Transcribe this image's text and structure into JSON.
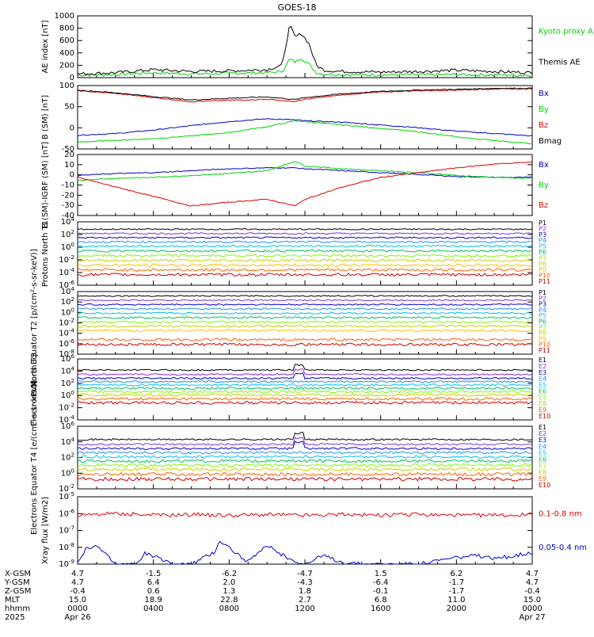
{
  "title": "GOES-18",
  "colors": {
    "black": "#000000",
    "green": "#00d000",
    "bright_green": "#00ff00",
    "red": "#e00000",
    "blue": "#0000cc"
  },
  "xticks": [
    "0000",
    "0400",
    "0800",
    "1200",
    "1600",
    "2000",
    "0000"
  ],
  "ephemeris": {
    "labels": [
      "X-GSM",
      "Y-GSM",
      "Z-GSM",
      "MLT",
      "hhmm",
      "2025"
    ],
    "rows": [
      [
        "4.7",
        "-1.5",
        "-6.2",
        "-4.7",
        "1.5",
        "6.2",
        "4.7"
      ],
      [
        "4.7",
        "6.4",
        "2.0",
        "-4.3",
        "-6.4",
        "-1.7",
        "4.7"
      ],
      [
        "-0.4",
        "0.6",
        "1.3",
        "1.8",
        "-0.1",
        "-1.7",
        "-0.4"
      ],
      [
        "15.0",
        "18.9",
        "22.8",
        "2.7",
        "6.8",
        "11.0",
        "15.0"
      ],
      [
        "0000",
        "0400",
        "0800",
        "1200",
        "1600",
        "2000",
        "0000"
      ]
    ],
    "date_left": "Apr 26",
    "date_right": "Apr 27"
  },
  "chart_data": [
    {
      "type": "line",
      "ylabel": "AE index [nT]",
      "yticks": [
        "1000",
        "800",
        "600",
        "400",
        "200",
        "0"
      ],
      "ylim": [
        0,
        1000
      ],
      "series": [
        {
          "name": "Kyoto proxy AE",
          "color": "#00d000",
          "key_x": 1.25,
          "x": [
            0,
            2,
            4,
            6,
            8,
            10,
            10.8,
            11.2,
            11.5,
            11.8,
            12.2,
            12.6,
            13,
            14,
            16,
            18,
            20,
            22,
            24
          ],
          "y": [
            40,
            50,
            80,
            60,
            70,
            80,
            100,
            300,
            250,
            320,
            220,
            80,
            60,
            50,
            45,
            45,
            50,
            45,
            40
          ]
        },
        {
          "name": "Themis AE",
          "color": "#000000",
          "x": [
            0,
            2,
            4,
            6,
            8,
            10,
            10.8,
            11.2,
            11.5,
            11.8,
            12.2,
            12.6,
            13,
            14,
            16,
            18,
            20,
            22,
            24
          ],
          "y": [
            60,
            80,
            130,
            100,
            110,
            130,
            200,
            850,
            650,
            720,
            560,
            200,
            120,
            100,
            90,
            100,
            120,
            100,
            80
          ]
        }
      ]
    },
    {
      "type": "line",
      "ylabel": "B (SM) [nT]",
      "yticks": [
        "100",
        "50",
        "0",
        "-50"
      ],
      "ylim": [
        -60,
        125
      ],
      "series": [
        {
          "name": "Bx",
          "color": "#0000cc",
          "x": [
            0,
            2,
            4,
            6,
            8,
            10,
            11.5,
            12,
            14,
            16,
            18,
            20,
            22,
            24
          ],
          "y": [
            -20,
            -15,
            -5,
            8,
            20,
            28,
            25,
            22,
            18,
            10,
            2,
            -8,
            -15,
            -22
          ]
        },
        {
          "name": "By",
          "color": "#00d000",
          "x": [
            0,
            2,
            4,
            6,
            8,
            10,
            11.5,
            12,
            14,
            16,
            18,
            20,
            22,
            24
          ],
          "y": [
            -40,
            -35,
            -30,
            -22,
            -12,
            5,
            22,
            20,
            10,
            0,
            -10,
            -25,
            -35,
            -45
          ]
        },
        {
          "name": "Bz",
          "color": "#e00000",
          "x": [
            0,
            2,
            4,
            6,
            8,
            10,
            11.5,
            12,
            14,
            16,
            18,
            20,
            22,
            24
          ],
          "y": [
            110,
            102,
            90,
            78,
            82,
            85,
            78,
            85,
            98,
            106,
            110,
            112,
            115,
            115
          ]
        },
        {
          "name": "Bmag",
          "color": "#000000",
          "x": [
            0,
            2,
            4,
            6,
            8,
            10,
            11.5,
            12,
            14,
            16,
            18,
            20,
            22,
            24
          ],
          "y": [
            112,
            104,
            93,
            83,
            88,
            92,
            84,
            90,
            101,
            108,
            112,
            114,
            117,
            117
          ]
        }
      ]
    },
    {
      "type": "line",
      "ylabel": "B (SM)-IGRF (SM) [nT]",
      "yticks": [
        "20",
        "10",
        "0",
        "-10",
        "-20",
        "-30",
        "-40"
      ],
      "ylim": [
        -42,
        22
      ],
      "series": [
        {
          "name": "Bx",
          "color": "#0000cc",
          "x": [
            0,
            2,
            4,
            6,
            8,
            10,
            11.5,
            12,
            14,
            16,
            18,
            20,
            22,
            24
          ],
          "y": [
            0,
            2,
            3,
            5,
            7,
            8,
            8,
            7,
            5,
            3,
            1,
            -1,
            -2,
            -2
          ]
        },
        {
          "name": "By",
          "color": "#00d000",
          "x": [
            0,
            2,
            4,
            6,
            8,
            10,
            11.5,
            12,
            14,
            16,
            18,
            20,
            22,
            24
          ],
          "y": [
            -5,
            -3,
            -2,
            0,
            2,
            5,
            15,
            10,
            7,
            5,
            3,
            0,
            -2,
            -3
          ]
        },
        {
          "name": "Bz",
          "color": "#e00000",
          "x": [
            0,
            2,
            4,
            6,
            8,
            10,
            11.5,
            12,
            14,
            16,
            18,
            20,
            22,
            24
          ],
          "y": [
            -2,
            -12,
            -22,
            -32,
            -28,
            -25,
            -32,
            -25,
            -12,
            -2,
            3,
            8,
            12,
            14
          ]
        }
      ]
    },
    {
      "type": "line",
      "log": true,
      "ylabel": "Protons North T1",
      "yticks": [
        "10^4",
        "10^2",
        "10^0",
        "10^-2",
        "10^-4",
        "10^-6"
      ],
      "ylim": [
        -7,
        5
      ],
      "series": [
        {
          "name": "P1",
          "color": "#000000",
          "level": 3.6
        },
        {
          "name": "P2",
          "color": "#8a2be2",
          "level": 2.8
        },
        {
          "name": "P3",
          "color": "#0000cc",
          "level": 2.0
        },
        {
          "name": "P4",
          "color": "#1e90ff",
          "level": 1.2
        },
        {
          "name": "P5",
          "color": "#00bfff",
          "level": 0.4
        },
        {
          "name": "P6",
          "color": "#00c060",
          "level": -0.5
        },
        {
          "name": "P7",
          "color": "#7cfc00",
          "level": -1.4
        },
        {
          "name": "P8",
          "color": "#c8d000",
          "level": -2.3
        },
        {
          "name": "P9",
          "color": "#ffc000",
          "level": -3.2
        },
        {
          "name": "P10",
          "color": "#ff6000",
          "level": -4.1
        },
        {
          "name": "P11",
          "color": "#cc0000",
          "level": -5.0
        }
      ]
    },
    {
      "type": "line",
      "log": true,
      "ylabel": "Protons Equator T2 [p/(cm²-s-sr-keV)]",
      "yticks": [
        "10^4",
        "10^2",
        "10^0",
        "10^-2",
        "10^-4",
        "10^-6",
        "10^-8"
      ],
      "ylim": [
        -8.5,
        4.5
      ],
      "series": [
        {
          "name": "P1",
          "color": "#000000",
          "level": 3.6
        },
        {
          "name": "P2",
          "color": "#8a2be2",
          "level": 2.7
        },
        {
          "name": "P3",
          "color": "#0000cc",
          "level": 1.8
        },
        {
          "name": "P4",
          "color": "#1e90ff",
          "level": 0.9
        },
        {
          "name": "P5",
          "color": "#00bfff",
          "level": 0.0
        },
        {
          "name": "P6",
          "color": "#00c060",
          "level": -0.9
        },
        {
          "name": "P7",
          "color": "#7cfc00",
          "level": -1.8
        },
        {
          "name": "P8",
          "color": "#c8d000",
          "level": -2.7
        },
        {
          "name": "P9",
          "color": "#ffc000",
          "level": -3.6
        },
        {
          "name": "P10",
          "color": "#ff6000",
          "level": -5.5
        },
        {
          "name": "P11",
          "color": "#cc0000",
          "level": -6.5
        }
      ]
    },
    {
      "type": "line",
      "log": true,
      "ylabel": "Electrons North T3",
      "yticks": [
        "10^6",
        "10^4",
        "10^2",
        "10^0",
        "10^-2",
        "10^-4"
      ],
      "ylim": [
        -4.5,
        6.5
      ],
      "series": [
        {
          "name": "E1",
          "color": "#000000",
          "level": 4.5
        },
        {
          "name": "E2",
          "color": "#8a2be2",
          "level": 3.7
        },
        {
          "name": "E3",
          "color": "#0000cc",
          "level": 3.0
        },
        {
          "name": "E4",
          "color": "#1e90ff",
          "level": 2.4
        },
        {
          "name": "E5",
          "color": "#00bfff",
          "level": 1.8
        },
        {
          "name": "E6",
          "color": "#00c060",
          "level": 1.2
        },
        {
          "name": "E7",
          "color": "#7cfc00",
          "level": 0.6
        },
        {
          "name": "E8",
          "color": "#c8d000",
          "level": 0.0
        },
        {
          "name": "E9",
          "color": "#ff6000",
          "level": -0.7
        },
        {
          "name": "E10",
          "color": "#cc0000",
          "level": -1.4
        }
      ]
    },
    {
      "type": "line",
      "log": true,
      "ylabel": "Electrons Equator T4 [e/(cm²-s-sr-keV)]",
      "yticks": [
        "10^6",
        "10^4",
        "10^2",
        "10^0",
        "10^-2"
      ],
      "ylim": [
        -2.5,
        6.5
      ],
      "series": [
        {
          "name": "E1",
          "color": "#000000",
          "level": 4.6
        },
        {
          "name": "E2",
          "color": "#8a2be2",
          "level": 3.9
        },
        {
          "name": "E3",
          "color": "#0000cc",
          "level": 3.3
        },
        {
          "name": "E4",
          "color": "#1e90ff",
          "level": 2.7
        },
        {
          "name": "E5",
          "color": "#00bfff",
          "level": 2.1
        },
        {
          "name": "E6",
          "color": "#00c060",
          "level": 1.5
        },
        {
          "name": "E7",
          "color": "#7cfc00",
          "level": 0.9
        },
        {
          "name": "E8",
          "color": "#c8d000",
          "level": 0.3
        },
        {
          "name": "E9",
          "color": "#ff6000",
          "level": -0.4
        },
        {
          "name": "E10",
          "color": "#cc0000",
          "level": -1.1
        }
      ]
    },
    {
      "type": "line",
      "log": true,
      "ylabel": "Xray flux [W/m2]",
      "yticks": [
        "10^-5",
        "10^-6",
        "10^-7",
        "10^-8",
        "10^-9"
      ],
      "ylim": [
        -9,
        -5
      ],
      "series": [
        {
          "name": "0.1-0.8 nm",
          "color": "#e00000",
          "x": [
            0,
            2,
            4,
            6,
            8,
            10,
            12,
            14,
            16,
            18,
            20,
            22,
            24
          ],
          "y": [
            -6.1,
            -6.0,
            -6.1,
            -6.05,
            -6.1,
            -6.05,
            -6.1,
            -6.05,
            -6.1,
            -6.05,
            -6.1,
            -6.1,
            -6.05
          ]
        },
        {
          "name": "0.05-0.4 nm",
          "color": "#0000cc",
          "x": [
            0,
            0.5,
            1,
            2,
            3.2,
            3.5,
            5,
            6,
            7.2,
            7.5,
            8,
            9,
            10,
            11,
            12,
            13,
            14,
            15,
            16,
            17,
            18,
            19,
            20,
            21,
            22,
            23,
            24
          ],
          "y": [
            -9,
            -8.0,
            -7.9,
            -9,
            -9,
            -8.3,
            -9,
            -9,
            -8.3,
            -7.6,
            -8.0,
            -8.9,
            -7.9,
            -8.6,
            -9,
            -8.5,
            -8.9,
            -9,
            -9,
            -9,
            -9,
            -8.8,
            -8.6,
            -8.5,
            -8.7,
            -8.5,
            -8.3
          ]
        }
      ]
    }
  ]
}
